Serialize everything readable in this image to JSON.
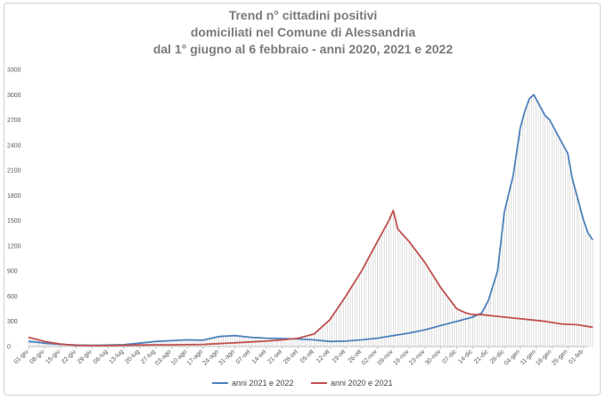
{
  "chart_data": {
    "type": "line",
    "title_lines": [
      "Trend n° cittadini positivi",
      "domiciliati nel Comune di Alessandria",
      "dal 1° giugno al 6 febbraio - anni 2020, 2021 e 2022"
    ],
    "ylim": [
      0,
      3300
    ],
    "yticks": [
      0,
      300,
      600,
      900,
      1200,
      1500,
      1800,
      2100,
      2400,
      2700,
      3000,
      3300
    ],
    "x_categories": [
      "01-giu",
      "08-giu",
      "15-giu",
      "22-giu",
      "29-giu",
      "06-lug",
      "13-lug",
      "20-lug",
      "27-lug",
      "03-ago",
      "10-ago",
      "17-ago",
      "24-ago",
      "31-ago",
      "07-set",
      "14-set",
      "21-set",
      "28-set",
      "05-ott",
      "12-ott",
      "19-ott",
      "26-ott",
      "02-nov",
      "09-nov",
      "16-nov",
      "23-nov",
      "30-nov",
      "07-dic",
      "14-dic",
      "21-dic",
      "28-dic",
      "04-gen",
      "11-gen",
      "18-gen",
      "25-gen",
      "01-feb"
    ],
    "series": [
      {
        "name": "anni 2021 e 2022",
        "color": "#4f81bd",
        "x": [
          0,
          3,
          7,
          14,
          21,
          28,
          35,
          42,
          49,
          56,
          63,
          70,
          77,
          84,
          91,
          98,
          105,
          112,
          119,
          126,
          133,
          140,
          147,
          154,
          161,
          168,
          175,
          182,
          189,
          196,
          200,
          203,
          207,
          210,
          214,
          217,
          219,
          221,
          223,
          225,
          227,
          228,
          230,
          232,
          234,
          236,
          238,
          240,
          242,
          245,
          247,
          249
        ],
        "y": [
          60,
          55,
          40,
          25,
          18,
          15,
          18,
          22,
          40,
          60,
          70,
          80,
          75,
          120,
          130,
          110,
          100,
          95,
          90,
          80,
          60,
          65,
          80,
          100,
          130,
          160,
          200,
          250,
          300,
          350,
          400,
          550,
          900,
          1600,
          2050,
          2600,
          2800,
          2950,
          3000,
          2900,
          2800,
          2750,
          2700,
          2600,
          2500,
          2400,
          2300,
          2000,
          1800,
          1500,
          1350,
          1270
        ]
      },
      {
        "name": "anni 2020 e 2021",
        "color": "#c0504d",
        "x": [
          0,
          3,
          7,
          14,
          21,
          28,
          35,
          42,
          49,
          56,
          63,
          70,
          77,
          84,
          91,
          98,
          105,
          112,
          119,
          126,
          133,
          140,
          147,
          154,
          159,
          161,
          163,
          168,
          175,
          182,
          189,
          193,
          196,
          200,
          207,
          214,
          221,
          228,
          235,
          242,
          249
        ],
        "y": [
          110,
          90,
          60,
          30,
          15,
          12,
          12,
          15,
          18,
          20,
          20,
          22,
          25,
          35,
          45,
          55,
          65,
          80,
          100,
          150,
          320,
          600,
          900,
          1250,
          1500,
          1620,
          1400,
          1250,
          1000,
          700,
          450,
          400,
          380,
          380,
          360,
          340,
          320,
          300,
          270,
          260,
          230
        ]
      }
    ],
    "legend_position": "bottom",
    "grid": false
  }
}
